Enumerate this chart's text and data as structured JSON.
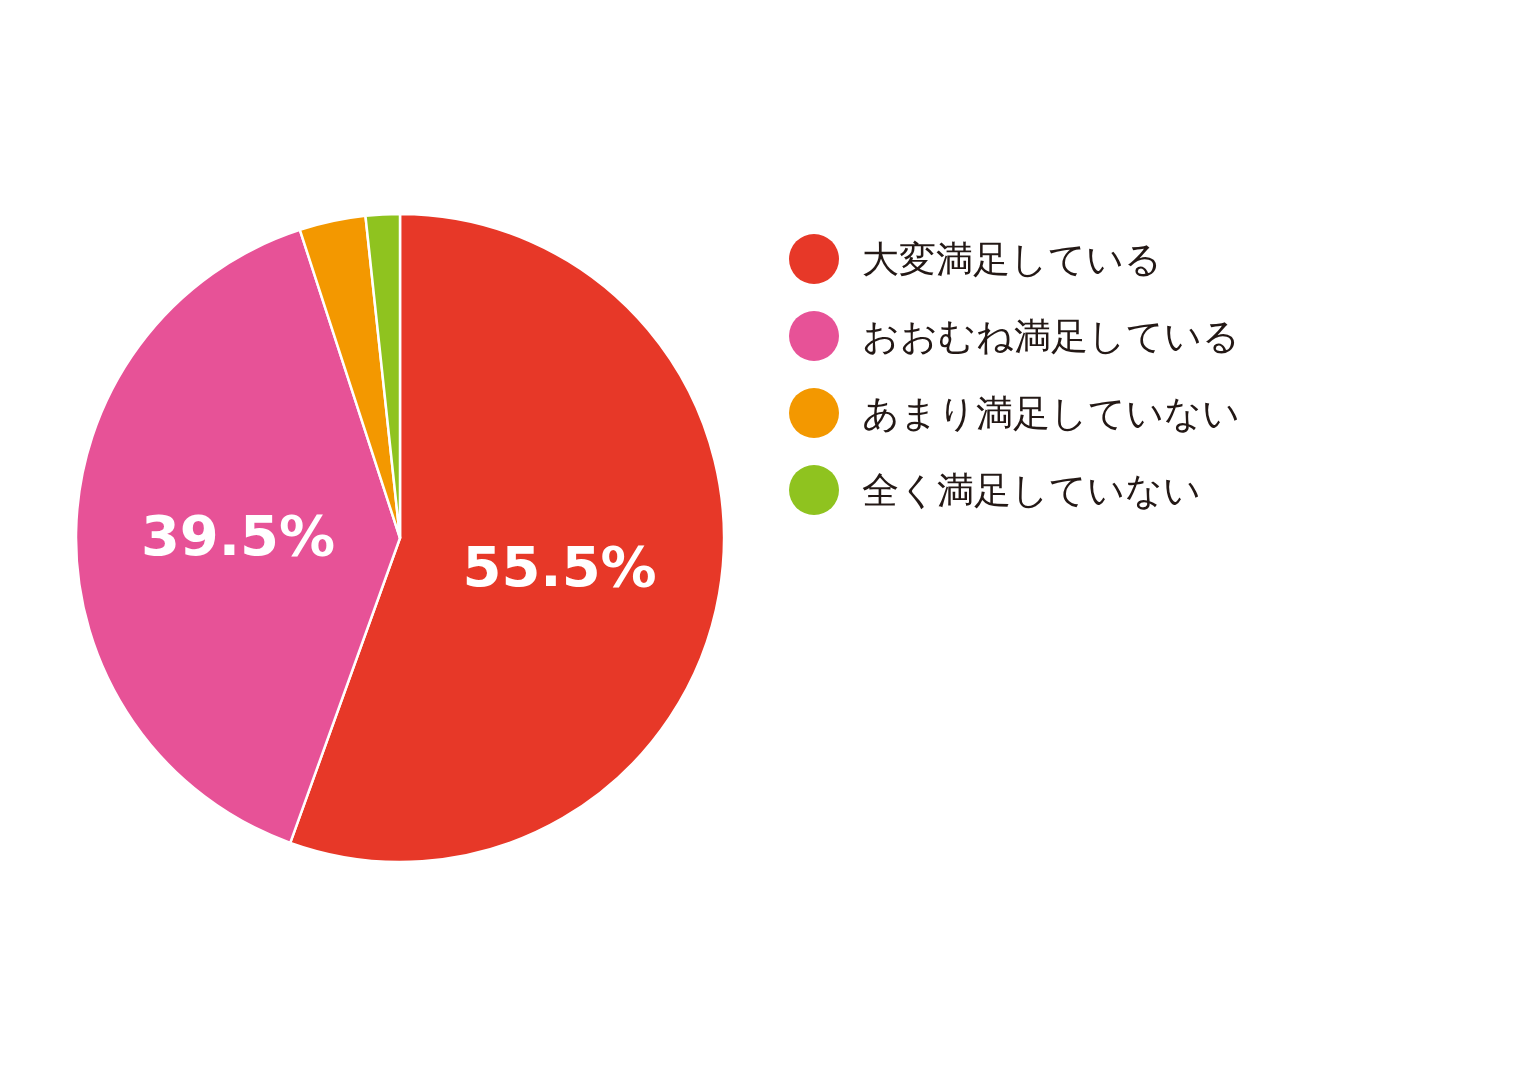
{
  "chart_data": {
    "type": "pie",
    "categories": [
      "大変満足している",
      "おおむね満足している",
      "あまり満足していない",
      "全く満足していない"
    ],
    "values": [
      55.5,
      39.5,
      3.3,
      1.7
    ],
    "colors": [
      "#e73828",
      "#e75297",
      "#f39800",
      "#8fc31f"
    ],
    "value_labels": [
      "55.5%",
      "39.5%",
      null,
      null
    ],
    "legend": "right"
  }
}
